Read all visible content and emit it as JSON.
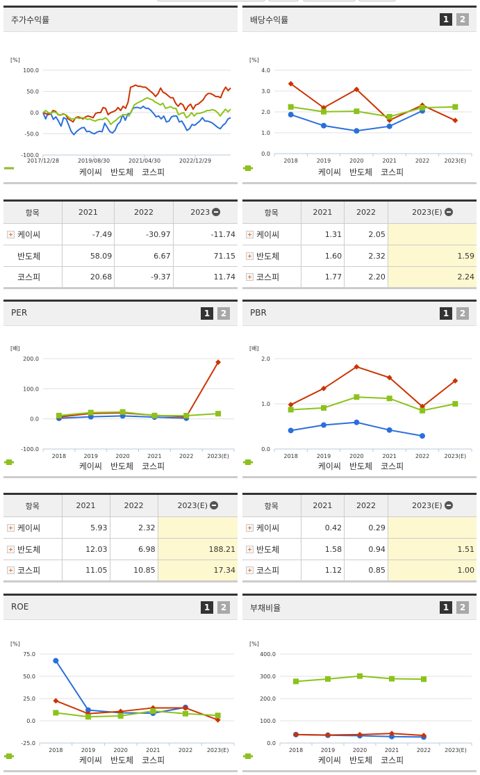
{
  "colors": {
    "kc": "#2a6fdb",
    "semi": "#cc3300",
    "kospi": "#8cc21c",
    "grid": "#e0e0e0",
    "estimate_bg": "#fdf8d0"
  },
  "legend": {
    "kc": "케이씨",
    "semi": "반도체",
    "kospi": "코스피"
  },
  "pager": {
    "p1": "1",
    "p2": "2"
  },
  "stock_return": {
    "title": "주가수익률",
    "unit": "[%]",
    "yticks": [
      "100.0",
      "50.0",
      "0.0",
      "-50.0",
      "-100.0"
    ],
    "xticks": [
      "2017/12/28",
      "2019/08/30",
      "2021/04/30",
      "2022/12/29"
    ],
    "table": {
      "headers": [
        "항목",
        "2021",
        "2022",
        "2023"
      ],
      "rows": [
        {
          "label": "케이씨",
          "values": [
            "-7.49",
            "-30.97",
            "-11.74"
          ]
        },
        {
          "label": "반도체",
          "values": [
            "58.09",
            "6.67",
            "71.15"
          ]
        },
        {
          "label": "코스피",
          "values": [
            "20.68",
            "-9.37",
            "11.74"
          ]
        }
      ]
    }
  },
  "dividend_yield": {
    "title": "배당수익률",
    "unit": "[%]",
    "yticks": [
      "4.0",
      "3.0",
      "2.0",
      "1.0",
      "0.0"
    ],
    "xticks": [
      "2018",
      "2019",
      "2020",
      "2021",
      "2022",
      "2023(E)"
    ],
    "table": {
      "headers": [
        "항목",
        "2021",
        "2022",
        "2023(E)"
      ],
      "rows": [
        {
          "label": "케이씨",
          "values": [
            "1.31",
            "2.05",
            ""
          ]
        },
        {
          "label": "반도체",
          "values": [
            "1.60",
            "2.32",
            "1.59"
          ]
        },
        {
          "label": "코스피",
          "values": [
            "1.77",
            "2.20",
            "2.24"
          ]
        }
      ]
    }
  },
  "per": {
    "title": "PER",
    "unit": "[배]",
    "yticks": [
      "200.0",
      "100.0",
      "0.0",
      "-100.0"
    ],
    "xticks": [
      "2018",
      "2019",
      "2020",
      "2021",
      "2022",
      "2023(E)"
    ],
    "table": {
      "headers": [
        "항목",
        "2021",
        "2022",
        "2023(E)"
      ],
      "rows": [
        {
          "label": "케이씨",
          "values": [
            "5.93",
            "2.32",
            ""
          ]
        },
        {
          "label": "반도체",
          "values": [
            "12.03",
            "6.98",
            "188.21"
          ]
        },
        {
          "label": "코스피",
          "values": [
            "11.05",
            "10.85",
            "17.34"
          ]
        }
      ]
    }
  },
  "pbr": {
    "title": "PBR",
    "unit": "[배]",
    "yticks": [
      "2.0",
      "1.0",
      "0.0"
    ],
    "xticks": [
      "2018",
      "2019",
      "2020",
      "2021",
      "2022",
      "2023(E)"
    ],
    "table": {
      "headers": [
        "항목",
        "2021",
        "2022",
        "2023(E)"
      ],
      "rows": [
        {
          "label": "케이씨",
          "values": [
            "0.42",
            "0.29",
            ""
          ]
        },
        {
          "label": "반도체",
          "values": [
            "1.58",
            "0.94",
            "1.51"
          ]
        },
        {
          "label": "코스피",
          "values": [
            "1.12",
            "0.85",
            "1.00"
          ]
        }
      ]
    }
  },
  "roe": {
    "title": "ROE",
    "unit": "[%]",
    "yticks": [
      "75.0",
      "50.0",
      "25.0",
      "0.0",
      "-25.0"
    ],
    "xticks": [
      "2018",
      "2019",
      "2020",
      "2021",
      "2022",
      "2023(E)"
    ]
  },
  "debt_ratio": {
    "title": "부채비율",
    "unit": "[%]",
    "yticks": [
      "400.0",
      "300.0",
      "200.0",
      "100.0",
      "0.0"
    ],
    "xticks": [
      "2018",
      "2019",
      "2020",
      "2021",
      "2022",
      "2023(E)"
    ]
  },
  "chart_data": [
    {
      "type": "line",
      "title": "주가수익률",
      "ylabel": "[%]",
      "ylim": [
        -100,
        100
      ],
      "x_ticks": [
        "2017/12/28",
        "2019/08/30",
        "2021/04/30",
        "2022/12/29"
      ],
      "series": [
        {
          "name": "케이씨",
          "values": [
            0,
            -15,
            0,
            -2,
            -16,
            -10,
            -20,
            -32,
            -12,
            -15,
            -30,
            -45,
            -52,
            -45,
            -40,
            -36,
            -35,
            -45,
            -44,
            -48,
            -50,
            -46,
            -44,
            -45,
            -25,
            -35,
            -45,
            -48,
            -42,
            -28,
            -22,
            -5,
            -18,
            -3,
            -2,
            10,
            12,
            12,
            10,
            15,
            10,
            10,
            5,
            -2,
            -10,
            -8,
            -15,
            -8,
            -22,
            -20,
            -10,
            -8,
            -8,
            -22,
            -20,
            -30,
            -42,
            -38,
            -28,
            -30,
            -25,
            -20,
            -12,
            -20,
            -20,
            -22,
            -25,
            -30,
            -35,
            -38,
            -30,
            -25,
            -15,
            -12
          ]
        },
        {
          "name": "반도체",
          "values": [
            0,
            -2,
            -5,
            -3,
            5,
            3,
            -5,
            -6,
            -3,
            -5,
            -15,
            -18,
            -22,
            -12,
            -10,
            -12,
            -15,
            -10,
            -8,
            -10,
            -12,
            -2,
            0,
            0,
            12,
            10,
            -5,
            0,
            2,
            5,
            12,
            5,
            15,
            10,
            25,
            60,
            62,
            65,
            62,
            62,
            60,
            60,
            55,
            50,
            45,
            38,
            45,
            58,
            48,
            45,
            40,
            35,
            35,
            22,
            15,
            22,
            18,
            5,
            15,
            20,
            8,
            18,
            20,
            25,
            30,
            40,
            45,
            45,
            42,
            38,
            38,
            35,
            50,
            60,
            52,
            58
          ]
        },
        {
          "name": "코스피",
          "values": [
            0,
            5,
            0,
            -2,
            2,
            0,
            -5,
            -5,
            -4,
            -6,
            -12,
            -15,
            -15,
            -12,
            -14,
            -12,
            -13,
            -16,
            -15,
            -18,
            -20,
            -17,
            -16,
            -16,
            -12,
            -18,
            -28,
            -22,
            -18,
            -12,
            -8,
            -5,
            -5,
            -8,
            5,
            18,
            22,
            25,
            28,
            32,
            35,
            32,
            30,
            25,
            22,
            18,
            22,
            10,
            12,
            14,
            10,
            10,
            -5,
            -2,
            0,
            -12,
            -8,
            0,
            -8,
            -2,
            -2,
            0,
            2,
            5,
            5,
            7,
            5,
            0,
            -8,
            0,
            8,
            2,
            8
          ]
        }
      ]
    },
    {
      "type": "line",
      "title": "배당수익률",
      "ylabel": "[%]",
      "ylim": [
        0,
        4
      ],
      "categories": [
        "2018",
        "2019",
        "2020",
        "2021",
        "2022",
        "2023(E)"
      ],
      "series": [
        {
          "name": "케이씨",
          "values": [
            1.87,
            1.34,
            1.09,
            1.31,
            2.05,
            null
          ]
        },
        {
          "name": "반도체",
          "values": [
            3.35,
            2.2,
            3.08,
            1.6,
            2.32,
            1.59
          ]
        },
        {
          "name": "코스피",
          "values": [
            2.24,
            2.01,
            2.03,
            1.77,
            2.2,
            2.24
          ]
        }
      ]
    },
    {
      "type": "line",
      "title": "PER",
      "ylabel": "[배]",
      "ylim": [
        -100,
        200
      ],
      "categories": [
        "2018",
        "2019",
        "2020",
        "2021",
        "2022",
        "2023(E)"
      ],
      "series": [
        {
          "name": "케이씨",
          "values": [
            2,
            7,
            10,
            5.93,
            2.32,
            null
          ]
        },
        {
          "name": "반도체",
          "values": [
            6,
            18,
            20,
            12.03,
            6.98,
            188.21
          ]
        },
        {
          "name": "코스피",
          "values": [
            11,
            21,
            23,
            11.05,
            10.85,
            17.34
          ]
        }
      ]
    },
    {
      "type": "line",
      "title": "PBR",
      "ylabel": "[배]",
      "ylim": [
        0,
        2
      ],
      "categories": [
        "2018",
        "2019",
        "2020",
        "2021",
        "2022",
        "2023(E)"
      ],
      "series": [
        {
          "name": "케이씨",
          "values": [
            0.41,
            0.53,
            0.59,
            0.42,
            0.29,
            null
          ]
        },
        {
          "name": "반도체",
          "values": [
            0.98,
            1.34,
            1.82,
            1.58,
            0.94,
            1.51
          ]
        },
        {
          "name": "코스피",
          "values": [
            0.87,
            0.91,
            1.15,
            1.12,
            0.85,
            1.0
          ]
        }
      ]
    },
    {
      "type": "line",
      "title": "ROE",
      "ylabel": "[%]",
      "ylim": [
        -25,
        75
      ],
      "categories": [
        "2018",
        "2019",
        "2020",
        "2021",
        "2022",
        "2023(E)"
      ],
      "series": [
        {
          "name": "케이씨",
          "values": [
            67.5,
            12,
            9,
            8.5,
            15,
            null
          ]
        },
        {
          "name": "반도체",
          "values": [
            22.5,
            8,
            10.5,
            14.5,
            14.5,
            1
          ]
        },
        {
          "name": "코스피",
          "values": [
            9,
            4.5,
            5.5,
            11,
            8,
            6
          ]
        }
      ]
    },
    {
      "type": "line",
      "title": "부채비율",
      "ylabel": "[%]",
      "ylim": [
        0,
        400
      ],
      "categories": [
        "2018",
        "2019",
        "2020",
        "2021",
        "2022",
        "2023(E)"
      ],
      "series": [
        {
          "name": "케이씨",
          "values": [
            38,
            35,
            33,
            29,
            27,
            null
          ]
        },
        {
          "name": "반도체",
          "values": [
            38,
            36,
            38,
            43,
            34,
            null
          ]
        },
        {
          "name": "코스피",
          "values": [
            277,
            288,
            301,
            289,
            287,
            null
          ]
        }
      ]
    }
  ]
}
